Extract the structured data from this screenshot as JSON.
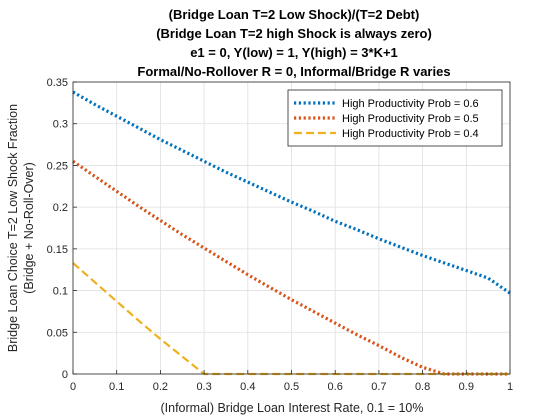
{
  "chart_data": {
    "type": "line",
    "title_lines": [
      "(Bridge Loan T=2 Low Shock)/(T=2 Debt)",
      "(Bridge Loan T=2 high Shock is always zero)",
      "e1 = 0, Y(low) = 1, Y(high) = 3*K+1",
      "Formal/No-Rollover R = 0, Informal/Bridge R varies"
    ],
    "xlabel": "(Informal) Bridge Loan Interest Rate, 0.1 = 10%",
    "ylabel_lines": [
      "Bridge Loan Choice T=2 Low Shock Fraction",
      "(Bridge + No-Roll-Over)"
    ],
    "xlim": [
      0,
      1
    ],
    "ylim": [
      0,
      0.35
    ],
    "xticks": [
      "0",
      "0.1",
      "0.2",
      "0.3",
      "0.4",
      "0.5",
      "0.6",
      "0.7",
      "0.8",
      "0.9",
      "1"
    ],
    "yticks": [
      "0",
      "0.05",
      "0.1",
      "0.15",
      "0.2",
      "0.25",
      "0.3",
      "0.35"
    ],
    "grid": true,
    "legend_position": "top-right",
    "x": [
      0,
      0.05,
      0.1,
      0.15,
      0.2,
      0.25,
      0.3,
      0.35,
      0.4,
      0.45,
      0.5,
      0.55,
      0.6,
      0.65,
      0.7,
      0.75,
      0.8,
      0.85,
      0.9,
      0.95,
      1
    ],
    "series": [
      {
        "name": "High Productivity Prob = 0.6",
        "color": "#0072BD",
        "style": "dotted",
        "values": [
          0.338,
          0.323,
          0.309,
          0.295,
          0.281,
          0.268,
          0.255,
          0.242,
          0.23,
          0.218,
          0.206,
          0.195,
          0.183,
          0.173,
          0.162,
          0.152,
          0.142,
          0.133,
          0.124,
          0.115,
          0.097
        ]
      },
      {
        "name": "High Productivity Prob = 0.5",
        "color": "#D95319",
        "style": "dotted",
        "values": [
          0.255,
          0.237,
          0.219,
          0.201,
          0.184,
          0.167,
          0.151,
          0.135,
          0.119,
          0.104,
          0.089,
          0.075,
          0.061,
          0.047,
          0.034,
          0.02,
          0.008,
          0.0,
          0.0,
          0.0,
          0.0
        ]
      },
      {
        "name": "High Productivity Prob = 0.4",
        "color": "#EDB120",
        "style": "dashed",
        "values": [
          0.133,
          0.11,
          0.087,
          0.064,
          0.042,
          0.021,
          0.0,
          0.0,
          0.0,
          0.0,
          0.0,
          0.0,
          0.0,
          0.0,
          0.0,
          0.0,
          0.0,
          0.0,
          0.0,
          0.0,
          0.0
        ]
      }
    ]
  }
}
